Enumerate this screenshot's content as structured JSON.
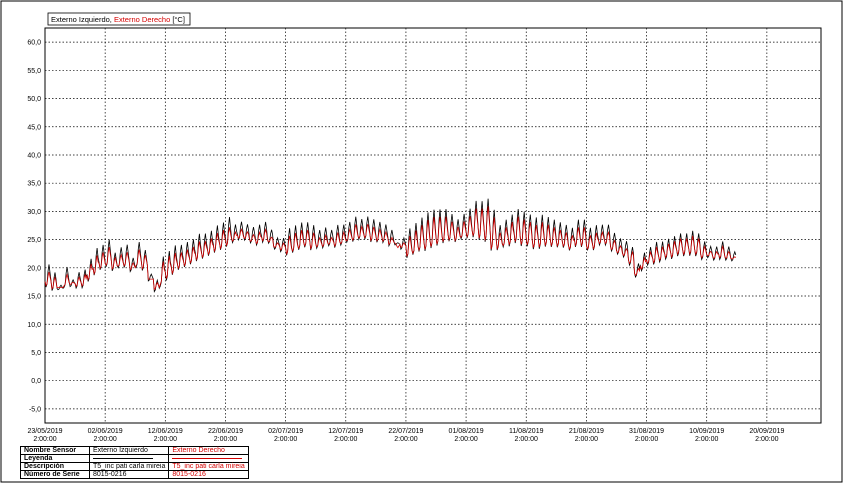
{
  "legend": {
    "series_black": "Externo Izquierdo",
    "separator": ", ",
    "series_red": "Externo Derecho",
    "unit": "[°C]"
  },
  "colors": {
    "series_black": "#000000",
    "series_red": "#d40000",
    "grid": "#000000"
  },
  "info_table": {
    "rows": [
      {
        "label": "Nombre Sensor",
        "left": "Externo Izquierdo",
        "right": "Externo Derecho"
      },
      {
        "label": "Leyenda",
        "left": "",
        "right": ""
      },
      {
        "label": "Descripción",
        "left": "T5_inc pati carla mireia",
        "right": "T5_inc pati carla mireia"
      },
      {
        "label": "Número de Serie",
        "left": "8015-0216",
        "right": "8015-0216"
      }
    ]
  },
  "chart_data": {
    "type": "line",
    "title": "",
    "xlabel": "",
    "ylabel": "",
    "ylim": [
      -7.5,
      62.5
    ],
    "xlim": [
      "2019-05-23",
      "2019-09-29"
    ],
    "y_ticks": [
      "60,0",
      "55,0",
      "50,0",
      "45,0",
      "40,0",
      "35,0",
      "30,0",
      "25,0",
      "20,0",
      "15,0",
      "10,0",
      "5,0",
      "0,0",
      "-5,0"
    ],
    "y_tick_values": [
      60,
      55,
      50,
      45,
      40,
      35,
      30,
      25,
      20,
      15,
      10,
      5,
      0,
      -5
    ],
    "x_ticks": [
      {
        "date": "23/05/2019",
        "time": "2:00:00"
      },
      {
        "date": "02/06/2019",
        "time": "2:00:00"
      },
      {
        "date": "12/06/2019",
        "time": "2:00:00"
      },
      {
        "date": "22/06/2019",
        "time": "2:00:00"
      },
      {
        "date": "02/07/2019",
        "time": "2:00:00"
      },
      {
        "date": "12/07/2019",
        "time": "2:00:00"
      },
      {
        "date": "22/07/2019",
        "time": "2:00:00"
      },
      {
        "date": "01/08/2019",
        "time": "2:00:00"
      },
      {
        "date": "11/08/2019",
        "time": "2:00:00"
      },
      {
        "date": "21/08/2019",
        "time": "2:00:00"
      },
      {
        "date": "31/08/2019",
        "time": "2:00:00"
      },
      {
        "date": "10/09/2019",
        "time": "2:00:00"
      },
      {
        "date": "20/09/2019",
        "time": "2:00:00"
      }
    ],
    "grid": true,
    "series": [
      {
        "name": "Externo Izquierdo",
        "color": "#000000",
        "daily_min": [
          16,
          15.5,
          16,
          16,
          16.5,
          16,
          16,
          17,
          18,
          19,
          19.5,
          19,
          19.5,
          19.5,
          19,
          19.5,
          19,
          17.5,
          15.5,
          16,
          17,
          18,
          19,
          19.5,
          20,
          20.5,
          21,
          21.5,
          22,
          22.5,
          23,
          24,
          24.5,
          24.5,
          24,
          23.5,
          24,
          24,
          23,
          22.5,
          21.5,
          22,
          22.5,
          23,
          22.5,
          23,
          23,
          23.5,
          23,
          23.5,
          24,
          24,
          24.5,
          24.5,
          24,
          24,
          24,
          23.5,
          24,
          23,
          21,
          21.5,
          22,
          22,
          22.5,
          23,
          23.5,
          24,
          24,
          24.5,
          24.5,
          24.5,
          24,
          23.5,
          22,
          22.5,
          23,
          23,
          23.5,
          23,
          23,
          22.5,
          22.5,
          23,
          23,
          23,
          23,
          22.5,
          23,
          23,
          22.5,
          22.5,
          23.5,
          23.5,
          22.5,
          22,
          21.5,
          20,
          18,
          19,
          20,
          20,
          20.5,
          21,
          21,
          21.5,
          21.5,
          21.5,
          21.5,
          21,
          21.5,
          21,
          21,
          21,
          21,
          21
        ],
        "daily_max": [
          21,
          19.5,
          17,
          20.5,
          18,
          19.5,
          20,
          22,
          24,
          24.5,
          25.5,
          23,
          24,
          24.5,
          22,
          25,
          23.5,
          19,
          18,
          22.5,
          23.5,
          24.5,
          24.5,
          25,
          25.5,
          26.5,
          26.5,
          27,
          28,
          28.5,
          29.5,
          28,
          28.5,
          28,
          27.5,
          28,
          28.5,
          27,
          25.5,
          25.5,
          27.5,
          28,
          28.5,
          28.5,
          28,
          27,
          27.5,
          27,
          28,
          28,
          28.5,
          29.5,
          29,
          29.5,
          29,
          28.5,
          28,
          27,
          24.5,
          25.5,
          27.5,
          28.5,
          29.5,
          30.5,
          31,
          31,
          31,
          30,
          29,
          30,
          31,
          32.5,
          32.5,
          33,
          31,
          28,
          29,
          30,
          31,
          30.5,
          30,
          29.5,
          30,
          29.5,
          29,
          28.5,
          28,
          27.5,
          29,
          29,
          27.5,
          28,
          28,
          28,
          26.5,
          25.5,
          25,
          24,
          21,
          23,
          24,
          25,
          25,
          25.5,
          26,
          26.5,
          26.5,
          27,
          26.5,
          25,
          24,
          24,
          25,
          24,
          23
        ]
      },
      {
        "name": "Externo Derecho",
        "color": "#d40000",
        "daily_min": [
          16.5,
          16,
          16.5,
          16.5,
          17,
          16.5,
          16.5,
          17.5,
          18.5,
          19.5,
          20,
          19.5,
          20,
          20,
          19.5,
          20,
          19.5,
          18,
          16,
          16.5,
          17.5,
          18.5,
          19.5,
          20,
          20.5,
          21,
          21.5,
          22,
          22.5,
          23,
          23.5,
          24.5,
          25,
          25,
          24.5,
          24,
          24.5,
          24.5,
          23.5,
          23,
          22,
          22.5,
          23,
          23.5,
          23,
          23.5,
          23.5,
          24,
          23.5,
          24,
          24.5,
          24.5,
          25,
          25,
          24.5,
          24.5,
          24.5,
          24,
          24.5,
          23.5,
          21.5,
          22,
          22.5,
          22.5,
          23,
          23.5,
          24,
          24.5,
          24.5,
          25,
          25,
          25,
          24.5,
          24,
          22.5,
          23,
          23.5,
          23.5,
          24,
          23.5,
          23.5,
          23,
          23,
          23.5,
          23.5,
          23.5,
          23.5,
          23,
          23.5,
          23.5,
          23,
          23,
          24,
          24,
          23,
          22.5,
          22,
          20.5,
          18.5,
          19.5,
          20.5,
          20.5,
          21,
          21.5,
          21.5,
          22,
          22,
          22,
          22,
          21.5,
          22,
          21.5,
          21.5,
          21.5,
          21.5,
          21.5
        ],
        "daily_max": [
          19.5,
          18.5,
          16.5,
          19,
          17.5,
          18.5,
          19,
          21,
          22.5,
          23,
          24,
          22,
          22.5,
          23,
          21,
          23.5,
          22.5,
          18,
          17.5,
          21.5,
          22.5,
          23,
          23,
          23.5,
          24,
          25,
          25,
          25.5,
          26.5,
          27,
          27.5,
          26.5,
          27,
          26.5,
          26,
          26.5,
          27,
          25.5,
          24.5,
          24.5,
          26,
          26.5,
          27,
          27,
          26.5,
          25.5,
          26,
          25.5,
          26.5,
          26.5,
          27,
          28,
          27.5,
          28,
          27.5,
          27,
          26.5,
          25.5,
          23.5,
          24.5,
          26,
          27,
          28,
          29,
          29.5,
          29.5,
          29.5,
          28.5,
          27.5,
          28.5,
          29.5,
          31,
          31,
          31.5,
          29.5,
          26.5,
          27.5,
          28.5,
          29.5,
          29,
          28.5,
          28,
          28.5,
          28,
          27.5,
          27,
          26.5,
          26,
          27.5,
          27.5,
          26,
          26.5,
          26.5,
          26.5,
          25,
          24,
          23.5,
          23,
          20,
          22,
          23,
          24,
          24,
          24.5,
          25,
          25.5,
          25.5,
          26,
          25.5,
          24,
          23,
          23,
          24,
          23,
          22
        ]
      }
    ]
  }
}
